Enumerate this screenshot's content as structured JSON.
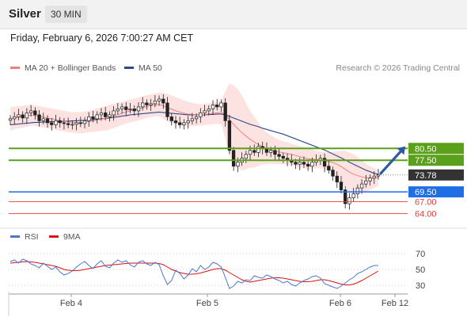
{
  "header": {
    "symbol": "Silver",
    "timeframe": "30 MIN"
  },
  "timestamp": "Friday, February 6, 2026 7:00:27 AM CET",
  "legend": {
    "bollinger": {
      "label": "MA 20 + Bollinger Bands",
      "color": "#f08080"
    },
    "ma50": {
      "label": "MA 50",
      "color": "#2b4b8c"
    },
    "rsi": {
      "label": "RSI",
      "color": "#4a78d0"
    },
    "ma9": {
      "label": "9MA",
      "color": "#dd1111"
    }
  },
  "credit": "Research © 2026 Trading Central",
  "chart_data": [
    {
      "type": "line",
      "title": "",
      "price_range": [
        61.5,
        96
      ],
      "x_ticks": [
        "Feb 4",
        "Feb 5",
        "Feb 6",
        "Feb 12"
      ],
      "levels": [
        {
          "value": 80.5,
          "label": "80.50",
          "kind": "resistance",
          "color": "#5aa01a"
        },
        {
          "value": 77.5,
          "label": "77.50",
          "kind": "resistance",
          "color": "#5aa01a"
        },
        {
          "value": 73.78,
          "label": "73.78",
          "kind": "last",
          "color": "#333333"
        },
        {
          "value": 69.5,
          "label": "69.50",
          "kind": "pivot",
          "color": "#1e6ee6"
        },
        {
          "value": 67.0,
          "label": "67.00",
          "kind": "support",
          "color": "#e04040"
        },
        {
          "value": 64.0,
          "label": "64.00",
          "kind": "support",
          "color": "#e04040"
        }
      ],
      "series": [
        {
          "name": "Price",
          "values": [
            88,
            88.5,
            89,
            88.2,
            89.5,
            90,
            89,
            87.5,
            88,
            87,
            86.5,
            87.5,
            87,
            86.8,
            86.5,
            86.6,
            87,
            86.8,
            87.5,
            88.5,
            88,
            89,
            89.5,
            88.5,
            89,
            90,
            90.5,
            91,
            90.3,
            90.5,
            90,
            91,
            92,
            91.5,
            91.8,
            92.5,
            93,
            92,
            88.5,
            87.5,
            87,
            86.5,
            87,
            87.5,
            88,
            88.5,
            89.5,
            90,
            90.5,
            91.5,
            91,
            92,
            87.5,
            80,
            76,
            77,
            78,
            79,
            80,
            79.5,
            81,
            80.5,
            79.5,
            80,
            79,
            78.5,
            78,
            77.5,
            77,
            76.5,
            77,
            76.5,
            76,
            77,
            77.5,
            78,
            76,
            75,
            73.5,
            72,
            70,
            66.5,
            68,
            69,
            70.5,
            71.5,
            72.3,
            73,
            73.5,
            73.78
          ]
        },
        {
          "name": "MA 20",
          "values": [
            88,
            88.2,
            88.4,
            88.5,
            88.7,
            88.9,
            88.8,
            88.6,
            88.4,
            88.2,
            88,
            87.8,
            87.6,
            87.4,
            87.2,
            87.1,
            87,
            87,
            87.1,
            87.3,
            87.5,
            87.7,
            87.9,
            88.1,
            88.4,
            88.7,
            89,
            89.4,
            89.7,
            90,
            90.2,
            90.5,
            90.8,
            91.1,
            91.3,
            91.5,
            91.6,
            91.3,
            90.8,
            90.4,
            90,
            89.7,
            89.4,
            89.2,
            89.1,
            89,
            89,
            89.1,
            89.2,
            89.4,
            89.5,
            89.6,
            89,
            87.8,
            86.6,
            85.5,
            84.5,
            83.6,
            82.8,
            82.1,
            81.5,
            81,
            80.5,
            80.2,
            79.9,
            79.6,
            79.4,
            79.2,
            79,
            78.7,
            78.4,
            78.1,
            77.9,
            77.8,
            77.7,
            77.6,
            77.4,
            77.2,
            76.9,
            76.5,
            75.9,
            75.2,
            74.5,
            74,
            73.6,
            73.3,
            73.1,
            73,
            73,
            73.1
          ]
        },
        {
          "name": "MA 50",
          "values": [
            86.5,
            86.6,
            86.7,
            86.8,
            86.9,
            87,
            87.1,
            87.1,
            87.2,
            87.2,
            87.3,
            87.3,
            87.3,
            87.4,
            87.4,
            87.5,
            87.5,
            87.6,
            87.6,
            87.7,
            87.8,
            87.9,
            88,
            88.1,
            88.2,
            88.4,
            88.5,
            88.7,
            88.8,
            89,
            89.1,
            89.2,
            89.3,
            89.4,
            89.5,
            89.6,
            89.7,
            89.6,
            89.5,
            89.4,
            89.3,
            89.2,
            89.1,
            89,
            89,
            89,
            89,
            89,
            89.1,
            89.1,
            89.2,
            89.2,
            89,
            88.6,
            88.2,
            87.8,
            87.4,
            87,
            86.6,
            86.3,
            86,
            85.6,
            85.3,
            85,
            84.7,
            84.4,
            84.1,
            83.7,
            83.3,
            82.9,
            82.5,
            82.1,
            81.7,
            81.3,
            80.9,
            80.5,
            80.1,
            79.6,
            79.1,
            78.6,
            78.1,
            77.6,
            77,
            76.5,
            76,
            75.5,
            75,
            74.6,
            74.2,
            73.9
          ]
        },
        {
          "name": "Upper Bollinger Band",
          "values": [
            91,
            91.1,
            91.2,
            91.3,
            91.4,
            91.5,
            91.4,
            91.2,
            91,
            90.8,
            90.6,
            90.4,
            90.2,
            90,
            89.8,
            89.7,
            89.7,
            89.7,
            89.8,
            90,
            90.3,
            90.6,
            90.9,
            91.2,
            91.5,
            91.8,
            92,
            92.3,
            92.6,
            92.9,
            93.1,
            93.4,
            93.7,
            94,
            94.2,
            94.4,
            94.6,
            94.6,
            94.3,
            93.9,
            93.5,
            93.1,
            92.7,
            92.3,
            92,
            91.8,
            91.7,
            91.8,
            91.9,
            92.1,
            92.3,
            92.6,
            95,
            97,
            96.5,
            95.5,
            94,
            92,
            90,
            88.5,
            87,
            85.5,
            84.5,
            83.8,
            83.2,
            82.7,
            82.3,
            82,
            81.7,
            81.4,
            81.1,
            80.8,
            80.5,
            80.2,
            79.9,
            79.7,
            79.5,
            79.5,
            79.6,
            79.8,
            79.9,
            79.9,
            79.5,
            79,
            78.3,
            77.5,
            76.7,
            76,
            75.5,
            75.2
          ]
        },
        {
          "name": "Lower Bollinger Band",
          "values": [
            85,
            85.3,
            85.6,
            85.7,
            86,
            86.3,
            86.2,
            86,
            85.8,
            85.6,
            85.4,
            85.2,
            85,
            84.8,
            84.6,
            84.5,
            84.3,
            84.3,
            84.4,
            84.6,
            84.7,
            84.8,
            84.9,
            85,
            85.3,
            85.6,
            86,
            86.5,
            86.8,
            87.1,
            87.3,
            87.6,
            87.9,
            88.2,
            88.4,
            88.6,
            88.6,
            88,
            87.3,
            86.9,
            86.5,
            86.3,
            86.1,
            86.1,
            86.2,
            86.2,
            86.3,
            86.4,
            86.5,
            86.7,
            86.7,
            86.6,
            83,
            78.6,
            76.7,
            75.5,
            75,
            75.2,
            75.6,
            75.7,
            76,
            76.5,
            76.5,
            76.6,
            76.6,
            76.5,
            76.5,
            76.4,
            76.3,
            76,
            75.7,
            75.4,
            75.3,
            75.4,
            75.5,
            75.5,
            75.3,
            74.9,
            74.2,
            73.2,
            71.9,
            70.5,
            69.5,
            69,
            68.9,
            69.1,
            69.5,
            70,
            70.5,
            71
          ]
        }
      ]
    },
    {
      "type": "line",
      "title": "",
      "y_range": [
        20,
        78
      ],
      "levels": [
        70,
        50,
        30
      ],
      "y_ticks": [
        "70",
        "50",
        "30"
      ],
      "series": [
        {
          "name": "RSI",
          "values": [
            60,
            62,
            58,
            63,
            61,
            57,
            55,
            52,
            58,
            54,
            50,
            53,
            47,
            43,
            45,
            48,
            53,
            57,
            60,
            55,
            51,
            57,
            61,
            54,
            52,
            58,
            62,
            59,
            61,
            56,
            53,
            59,
            61,
            57,
            55,
            59,
            56,
            42,
            31,
            36,
            49,
            45,
            38,
            43,
            51,
            47,
            55,
            50,
            53,
            59,
            57,
            53,
            40,
            26,
            29,
            35,
            33,
            37,
            36,
            42,
            40,
            39,
            43,
            41,
            38,
            36,
            33,
            35,
            31,
            29,
            33,
            36,
            38,
            41,
            42,
            39,
            32,
            30,
            28,
            26,
            29,
            33,
            37,
            40,
            45,
            47,
            50,
            53,
            55,
            55
          ]
        },
        {
          "name": "9MA",
          "values": [
            58,
            58.5,
            59,
            59.5,
            60,
            59.5,
            59,
            58,
            57,
            56,
            55,
            54,
            52,
            50,
            49,
            48.5,
            48.5,
            49,
            50,
            51,
            52,
            53,
            54,
            55,
            55.5,
            56,
            56.5,
            57,
            57.5,
            58,
            58,
            58,
            58,
            58,
            58,
            58,
            57.5,
            56,
            53,
            50,
            48,
            46,
            45,
            44,
            44,
            44.5,
            45.5,
            47,
            48.5,
            50,
            51,
            51,
            49,
            46,
            43,
            40,
            37,
            35,
            34,
            35,
            36,
            37,
            38,
            39,
            39.5,
            39.5,
            39,
            38,
            37,
            36,
            35,
            34.5,
            34.5,
            35,
            36,
            37,
            37,
            36,
            34.5,
            33,
            31.5,
            30.5,
            30.5,
            31.5,
            33.5,
            36,
            39,
            42,
            45,
            48
          ]
        }
      ]
    }
  ]
}
